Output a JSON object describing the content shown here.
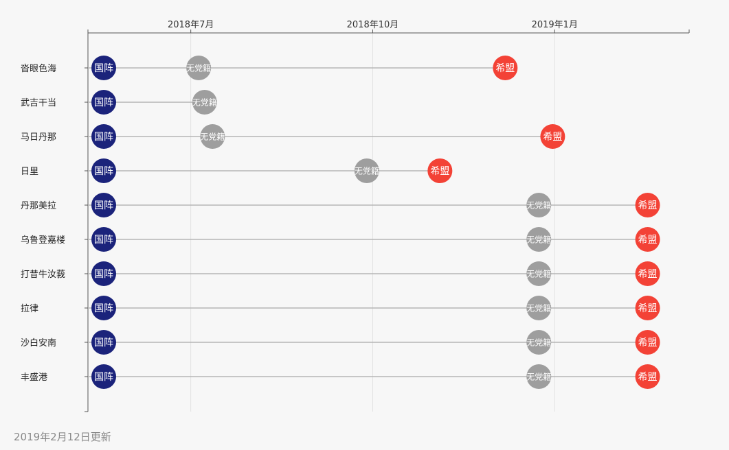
{
  "chart_data": {
    "type": "scatter",
    "x_axis": {
      "ticks": [
        {
          "date": "2018-07-01",
          "label": "2018年7月"
        },
        {
          "date": "2018-10-01",
          "label": "2018年10月"
        },
        {
          "date": "2019-01-01",
          "label": "2019年1月"
        }
      ],
      "range": [
        "2018-05-10",
        "2019-03-10"
      ],
      "position": "top",
      "grid": true
    },
    "categories": [
      "沓眼色海",
      "武吉干当",
      "马日丹那",
      "日里",
      "丹那美拉",
      "乌鲁登嘉楼",
      "打昔牛汝莪",
      "拉律",
      "沙白安南",
      "丰盛港"
    ],
    "statuses": {
      "bn": {
        "label": "国阵",
        "color": "#1b237b"
      },
      "ind": {
        "label": "无党籍",
        "color": "#9e9e9e"
      },
      "ph": {
        "label": "希盟",
        "color": "#f34236"
      }
    },
    "series": [
      {
        "category": "沓眼色海",
        "events": [
          {
            "date": "2018-05-18",
            "status": "bn"
          },
          {
            "date": "2018-07-05",
            "status": "ind"
          },
          {
            "date": "2018-12-07",
            "status": "ph"
          }
        ]
      },
      {
        "category": "武吉干当",
        "events": [
          {
            "date": "2018-05-18",
            "status": "bn"
          },
          {
            "date": "2018-07-08",
            "status": "ind"
          }
        ]
      },
      {
        "category": "马日丹那",
        "events": [
          {
            "date": "2018-05-18",
            "status": "bn"
          },
          {
            "date": "2018-07-12",
            "status": "ind"
          },
          {
            "date": "2018-12-31",
            "status": "ph"
          }
        ]
      },
      {
        "category": "日里",
        "events": [
          {
            "date": "2018-05-18",
            "status": "bn"
          },
          {
            "date": "2018-09-28",
            "status": "ind"
          },
          {
            "date": "2018-11-04",
            "status": "ph"
          }
        ]
      },
      {
        "category": "丹那美拉",
        "events": [
          {
            "date": "2018-05-18",
            "status": "bn"
          },
          {
            "date": "2018-12-24",
            "status": "ind"
          },
          {
            "date": "2019-02-17",
            "status": "ph"
          }
        ]
      },
      {
        "category": "乌鲁登嘉楼",
        "events": [
          {
            "date": "2018-05-18",
            "status": "bn"
          },
          {
            "date": "2018-12-24",
            "status": "ind"
          },
          {
            "date": "2019-02-17",
            "status": "ph"
          }
        ]
      },
      {
        "category": "打昔牛汝莪",
        "events": [
          {
            "date": "2018-05-18",
            "status": "bn"
          },
          {
            "date": "2018-12-24",
            "status": "ind"
          },
          {
            "date": "2019-02-17",
            "status": "ph"
          }
        ]
      },
      {
        "category": "拉律",
        "events": [
          {
            "date": "2018-05-18",
            "status": "bn"
          },
          {
            "date": "2018-12-24",
            "status": "ind"
          },
          {
            "date": "2019-02-17",
            "status": "ph"
          }
        ]
      },
      {
        "category": "沙白安南",
        "events": [
          {
            "date": "2018-05-18",
            "status": "bn"
          },
          {
            "date": "2018-12-24",
            "status": "ind"
          },
          {
            "date": "2019-02-17",
            "status": "ph"
          }
        ]
      },
      {
        "category": "丰盛港",
        "events": [
          {
            "date": "2018-05-18",
            "status": "bn"
          },
          {
            "date": "2018-12-24",
            "status": "ind"
          },
          {
            "date": "2019-02-17",
            "status": "ph"
          }
        ]
      }
    ]
  },
  "footer": {
    "updated": "2019年2月12日更新"
  }
}
